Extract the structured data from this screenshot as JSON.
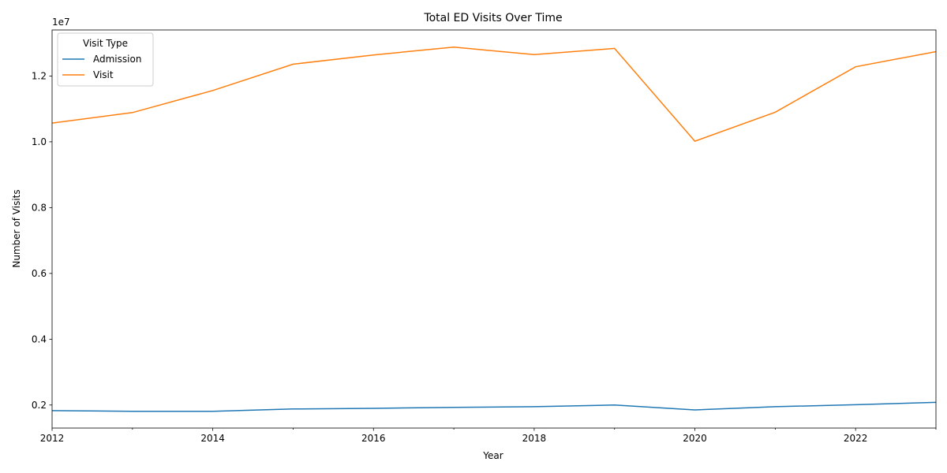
{
  "chart_data": {
    "type": "line",
    "title": "Total ED Visits Over Time",
    "xlabel": "Year",
    "ylabel": "Number of Visits",
    "offset_text": "1e7",
    "x": [
      2012,
      2013,
      2014,
      2015,
      2016,
      2017,
      2018,
      2019,
      2020,
      2021,
      2022,
      2023
    ],
    "xlim": [
      2012,
      2023
    ],
    "x_ticks": [
      "2012",
      "2014",
      "2016",
      "2018",
      "2020",
      "2022"
    ],
    "ylim": [
      1.3,
      13.4
    ],
    "y_ticks": [
      "0.2",
      "0.4",
      "0.6",
      "0.8",
      "1.0",
      "1.2"
    ],
    "y_tick_values": [
      2,
      4,
      6,
      8,
      10,
      12
    ],
    "y_unit_note": "values in millions; axis scaled by 1e7",
    "legend": {
      "title": "Visit Type",
      "placement": "upper-left"
    },
    "grid": false,
    "series": [
      {
        "name": "Admission",
        "color": "#1f77b4",
        "values": [
          1.83,
          1.81,
          1.81,
          1.88,
          1.9,
          1.93,
          1.95,
          2.0,
          1.85,
          1.95,
          2.01,
          2.08
        ]
      },
      {
        "name": "Visit",
        "color": "#ff7f0e",
        "values": [
          10.57,
          10.89,
          11.56,
          12.36,
          12.64,
          12.88,
          12.65,
          12.84,
          10.02,
          10.9,
          12.28,
          12.74
        ]
      }
    ]
  }
}
